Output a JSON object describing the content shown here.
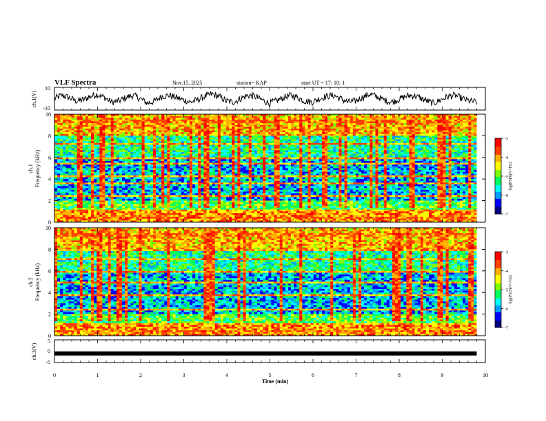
{
  "header": {
    "title": "VLF Spectra",
    "date": "Nov.15, 2025",
    "station": "station= KAP",
    "start": "start  UT  =   17: 10: 1"
  },
  "colors": {
    "spectrogram_scale": [
      "#000080",
      "#0000ff",
      "#00a0ff",
      "#00ffff",
      "#00ff60",
      "#80ff00",
      "#ffff00",
      "#ffb000",
      "#ff4000",
      "#ff0000",
      "#ffffff"
    ]
  },
  "chart_data": [
    {
      "type": "line",
      "name": "ch1-waveform",
      "ylabel": "ch.1(V)",
      "ylim": [
        -10,
        10
      ],
      "yticks": [
        "10",
        "-10"
      ],
      "x_range_min": [
        0,
        9.8
      ],
      "description_values": "noisy waveform centered near 0 V with ~1 min quasi-periodic oscillation of amplitude ~4 V",
      "samples": [
        0,
        3,
        1,
        -2,
        -1,
        2,
        4,
        1,
        -3,
        -2,
        1,
        3,
        0,
        -4,
        -2,
        2,
        3,
        1,
        -1,
        -3,
        -1,
        2,
        4,
        2,
        -2,
        -3,
        0,
        3,
        2,
        -1,
        -4,
        -2,
        1,
        3,
        1,
        -2,
        -3,
        0,
        2,
        3,
        0,
        -3,
        -2,
        1,
        4,
        2,
        -1,
        -3,
        -1,
        2,
        3,
        1,
        -2,
        -4,
        -1,
        2,
        3,
        0,
        -2,
        -3
      ]
    },
    {
      "type": "heatmap",
      "name": "ch1-spectrogram",
      "ylabel": "ch.1",
      "ylabel2": "Frequency  (kHz)",
      "ylim": [
        0,
        10
      ],
      "yticks": [
        "0",
        "2",
        "4",
        "6",
        "8",
        "10"
      ],
      "colorbar": {
        "label": "log(PSD)(V²/Hz)",
        "range": [
          -7,
          -3
        ],
        "ticks": [
          "-3",
          "-4",
          "-5",
          "-6",
          "-7"
        ]
      }
    },
    {
      "type": "heatmap",
      "name": "ch2-spectrogram",
      "ylabel": "ch.2",
      "ylabel2": "Frequency  (kHz)",
      "ylim": [
        0,
        10
      ],
      "yticks": [
        "0",
        "2",
        "4",
        "6",
        "8",
        "10"
      ],
      "colorbar": {
        "label": "log(PSD)(V²/Hz)",
        "range": [
          -7,
          -3
        ],
        "ticks": [
          "-3",
          "-4",
          "-5",
          "-6",
          "-7"
        ]
      }
    },
    {
      "type": "line",
      "name": "ch3-waveform",
      "ylabel": "ch.3(V)",
      "ylim": [
        -5,
        5
      ],
      "yticks": [
        "5",
        "0",
        "-5"
      ],
      "constant_value": -1,
      "x_range_min": [
        0,
        9.8
      ]
    }
  ],
  "xaxis": {
    "label": "Time  (min)",
    "range": [
      0,
      10
    ],
    "ticks": [
      "0",
      "1",
      "2",
      "3",
      "4",
      "5",
      "6",
      "7",
      "8",
      "9",
      "10"
    ]
  }
}
